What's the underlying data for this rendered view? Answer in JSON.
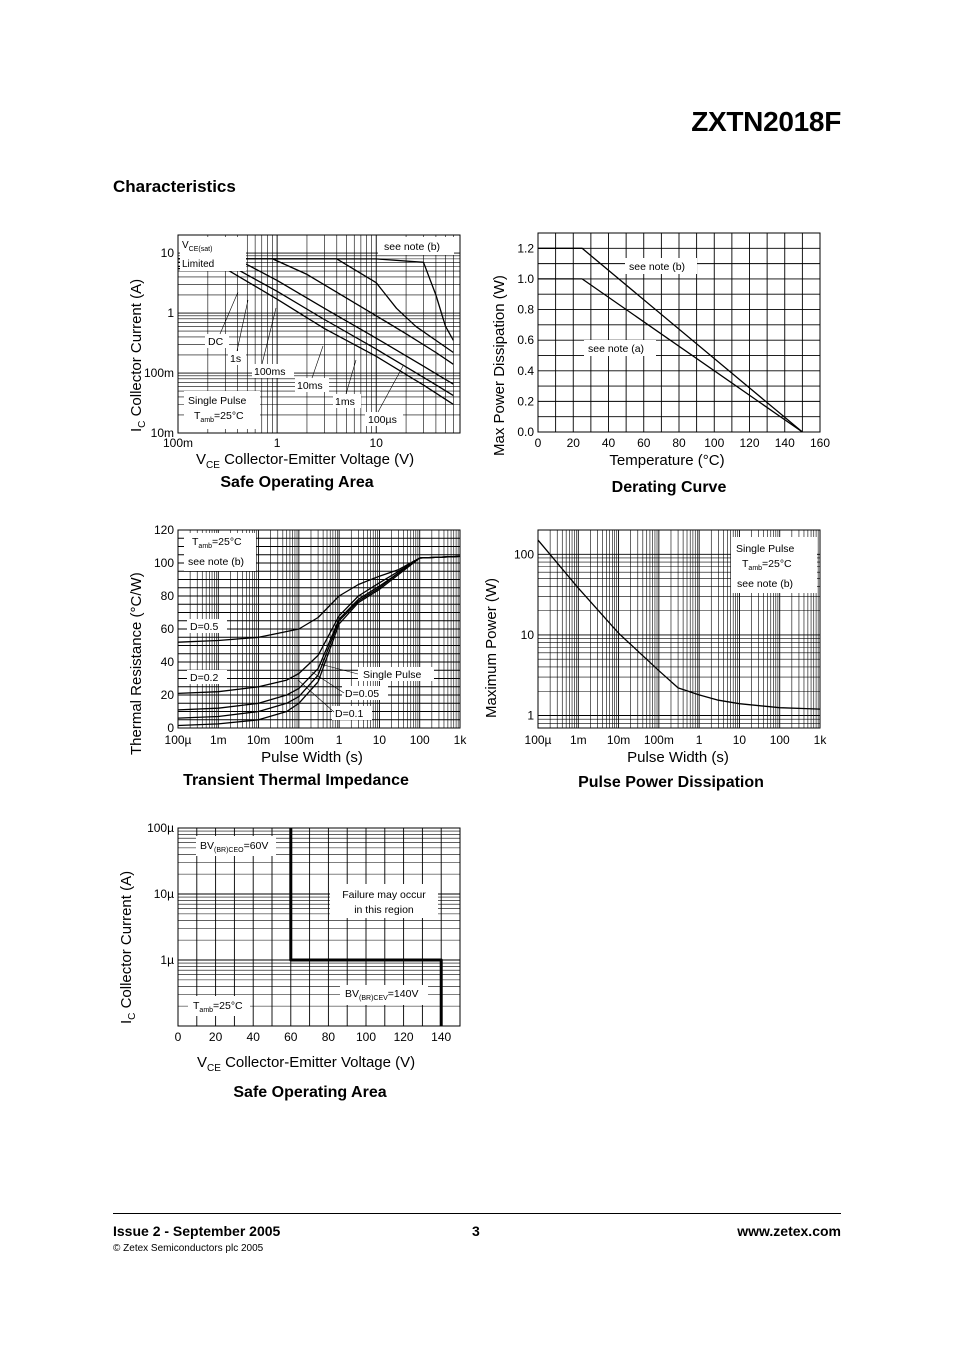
{
  "header": {
    "part_number": "ZXTN2018F"
  },
  "section_title": "Characteristics",
  "footer": {
    "issue": "Issue 2 - September 2005",
    "page": "3",
    "url": "www.zetex.com",
    "copyright": "© Zetex Semiconductors plc 2005"
  },
  "chart_data": [
    {
      "id": "soa",
      "type": "line",
      "title": "Safe Operating Area",
      "xscale": "log",
      "yscale": "log",
      "xlim": [
        0.1,
        70
      ],
      "ylim": [
        0.01,
        20
      ],
      "xticks": [
        {
          "v": 0.1,
          "label": "100m"
        },
        {
          "v": 1,
          "label": "1"
        },
        {
          "v": 10,
          "label": "10"
        }
      ],
      "yticks": [
        {
          "v": 0.01,
          "label": "10m"
        },
        {
          "v": 0.1,
          "label": "100m"
        },
        {
          "v": 1,
          "label": "1"
        },
        {
          "v": 10,
          "label": "10"
        }
      ],
      "ylabel": [
        "I",
        "C",
        " Collector Current (A)"
      ],
      "xlabel": [
        "V",
        "CE",
        " Collector-Emitter Voltage (V)"
      ],
      "series": [
        {
          "name": "DC",
          "x": [
            0.1,
            0.3,
            1,
            3,
            10,
            30,
            60
          ],
          "y": [
            5.5,
            5.5,
            1.7,
            0.55,
            0.19,
            0.063,
            0.03
          ]
        },
        {
          "name": "1s",
          "x": [
            0.1,
            0.35,
            1,
            3,
            10,
            30,
            60
          ],
          "y": [
            6,
            6,
            2.3,
            0.78,
            0.25,
            0.085,
            0.042
          ]
        },
        {
          "name": "100ms",
          "x": [
            0.1,
            0.45,
            1,
            3,
            10,
            30,
            60
          ],
          "y": [
            7,
            7,
            3.5,
            1.2,
            0.38,
            0.13,
            0.065
          ]
        },
        {
          "name": "10ms",
          "x": [
            0.1,
            0.9,
            2,
            10,
            20,
            40,
            60
          ],
          "y": [
            8,
            8,
            4.4,
            0.9,
            0.45,
            0.22,
            0.14
          ]
        },
        {
          "name": "1ms",
          "x": [
            0.1,
            4,
            10,
            16,
            25,
            40,
            60
          ],
          "y": [
            8,
            8,
            3.2,
            1.2,
            0.6,
            0.35,
            0.22
          ]
        },
        {
          "name": "100µs",
          "x": [
            0.1,
            10,
            30,
            40,
            50,
            60
          ],
          "y": [
            8,
            8,
            7,
            2,
            0.6,
            0.35
          ]
        }
      ],
      "labels": {
        "vce_sat": "V",
        "vce_sat_sub": "CE(sat)",
        "limited": "Limited",
        "note": "see note (b)",
        "dc": "DC",
        "s1": "1s",
        "ms100": "100ms",
        "ms10": "10ms",
        "ms1": "1ms",
        "us100": "100µs",
        "single_pulse": "Single Pulse",
        "tamb": "T",
        "tamb_sub": "amb",
        "tamb_val": "=25°C"
      }
    },
    {
      "id": "derating",
      "type": "line",
      "title": "Derating Curve",
      "xscale": "linear",
      "yscale": "linear",
      "xlim": [
        0,
        160
      ],
      "ylim": [
        0,
        1.3
      ],
      "xticks": [
        0,
        20,
        40,
        60,
        80,
        100,
        120,
        140,
        160
      ],
      "yticks": [
        0.0,
        0.2,
        0.4,
        0.6,
        0.8,
        1.0,
        1.2
      ],
      "xlabel": "Temperature (°C)",
      "ylabel": "Max Power Dissipation (W)",
      "series": [
        {
          "name": "see note (a)",
          "x": [
            0,
            25,
            150
          ],
          "y": [
            1.0,
            1.0,
            0
          ]
        },
        {
          "name": "see note (b)",
          "x": [
            0,
            25,
            150
          ],
          "y": [
            1.2,
            1.2,
            0
          ]
        }
      ]
    },
    {
      "id": "thermal",
      "type": "line",
      "title": "Transient Thermal Impedance",
      "xscale": "log",
      "yscale": "linear",
      "xlim": [
        0.0001,
        1000
      ],
      "ylim": [
        0,
        120
      ],
      "xticks": [
        {
          "v": 0.0001,
          "label": "100µ"
        },
        {
          "v": 0.001,
          "label": "1m"
        },
        {
          "v": 0.01,
          "label": "10m"
        },
        {
          "v": 0.1,
          "label": "100m"
        },
        {
          "v": 1,
          "label": "1"
        },
        {
          "v": 10,
          "label": "10"
        },
        {
          "v": 100,
          "label": "100"
        },
        {
          "v": 1000,
          "label": "1k"
        }
      ],
      "yticks": [
        0,
        20,
        40,
        60,
        80,
        100,
        120
      ],
      "xlabel": "Pulse Width (s)",
      "ylabel": "Thermal Resistance (°C/W)",
      "series": [
        {
          "name": "D=0.5",
          "x": [
            0.0001,
            0.001,
            0.01,
            0.1,
            0.3,
            1,
            3,
            10,
            30,
            100,
            1000
          ],
          "y": [
            52,
            53,
            55,
            60,
            67,
            80,
            87,
            92,
            96,
            103,
            104
          ]
        },
        {
          "name": "D=0.2",
          "x": [
            0.0001,
            0.001,
            0.01,
            0.05,
            0.1,
            0.3,
            1,
            3,
            10,
            30,
            100,
            1000
          ],
          "y": [
            21,
            22,
            25,
            29,
            33,
            44,
            68,
            80,
            88,
            95,
            103,
            104
          ]
        },
        {
          "name": "D=0.1",
          "x": [
            0.0001,
            0.001,
            0.01,
            0.05,
            0.1,
            0.3,
            1,
            3,
            10,
            30,
            100,
            1000
          ],
          "y": [
            11,
            12,
            15,
            20,
            24,
            36,
            66,
            78,
            86,
            94,
            103,
            104
          ]
        },
        {
          "name": "D=0.05",
          "x": [
            0.0001,
            0.001,
            0.01,
            0.05,
            0.1,
            0.3,
            1,
            3,
            10,
            30,
            100,
            1000
          ],
          "y": [
            6,
            7,
            10,
            15,
            19,
            32,
            65,
            77,
            85,
            94,
            103,
            104
          ]
        },
        {
          "name": "Single Pulse",
          "x": [
            0.0001,
            0.001,
            0.01,
            0.05,
            0.1,
            0.3,
            1,
            3,
            10,
            30,
            100,
            1000
          ],
          "y": [
            1.5,
            2.5,
            5,
            10,
            15,
            28,
            63,
            76,
            84,
            93,
            103,
            104
          ]
        }
      ],
      "labels": {
        "tamb": "T",
        "tamb_sub": "amb",
        "tamb_val": "=25°C",
        "note": "see note (b)",
        "d05": "D=0.5",
        "d02": "D=0.2",
        "d01": "D=0.1",
        "d005": "D=0.05",
        "single": "Single Pulse"
      }
    },
    {
      "id": "pulse",
      "type": "line",
      "title": "Pulse Power Dissipation",
      "xscale": "log",
      "yscale": "log",
      "xlim": [
        0.0001,
        1000
      ],
      "ylim": [
        0.7,
        200
      ],
      "xticks": [
        {
          "v": 0.0001,
          "label": "100µ"
        },
        {
          "v": 0.001,
          "label": "1m"
        },
        {
          "v": 0.01,
          "label": "10m"
        },
        {
          "v": 0.1,
          "label": "100m"
        },
        {
          "v": 1,
          "label": "1"
        },
        {
          "v": 10,
          "label": "10"
        },
        {
          "v": 100,
          "label": "100"
        },
        {
          "v": 1000,
          "label": "1k"
        }
      ],
      "yticks": [
        {
          "v": 1,
          "label": "1"
        },
        {
          "v": 10,
          "label": "10"
        },
        {
          "v": 100,
          "label": "100"
        }
      ],
      "xlabel": "Pulse Width (s)",
      "ylabel": "Maximum Power (W)",
      "series": [
        {
          "name": "Single Pulse",
          "x": [
            0.0001,
            0.001,
            0.01,
            0.1,
            0.3,
            1,
            3,
            10,
            100,
            1000
          ],
          "y": [
            150,
            38,
            10.5,
            3.6,
            2.2,
            1.8,
            1.55,
            1.4,
            1.25,
            1.2
          ]
        }
      ],
      "labels": {
        "single": "Single Pulse",
        "tamb": "T",
        "tamb_sub": "amb",
        "tamb_val": "=25°C",
        "note": "see note (b)"
      }
    },
    {
      "id": "soa2",
      "type": "line",
      "title": "Safe Operating Area",
      "xscale": "linear",
      "yscale": "log",
      "xlim": [
        0,
        150
      ],
      "ylim": [
        1e-07,
        0.0001
      ],
      "xticks": [
        0,
        20,
        40,
        60,
        80,
        100,
        120,
        140
      ],
      "yticks": [
        {
          "v": 1e-06,
          "label": "1µ"
        },
        {
          "v": 1e-05,
          "label": "10µ"
        },
        {
          "v": 0.0001,
          "label": "100µ"
        }
      ],
      "ylabel": [
        "I",
        "C",
        " Collector Current (A)"
      ],
      "xlabel": [
        "V",
        "CE",
        " Collector-Emitter Voltage (V)"
      ],
      "series": [
        {
          "name": "boundary",
          "x": [
            60,
            60,
            140,
            140
          ],
          "y": [
            0.0001,
            1e-06,
            1e-06,
            1e-07
          ]
        }
      ],
      "labels": {
        "bvceo": "BV",
        "bvceo_sub": "(BR)CEO",
        "bvceo_val": "=60V",
        "failure1": "Failure may occur",
        "failure2": "in this region",
        "bvcev": "BV",
        "bvcev_sub": "(BR)CEV",
        "bvcev_val": "=140V",
        "tamb": "T",
        "tamb_sub": "amb",
        "tamb_val": "=25°C"
      }
    }
  ]
}
